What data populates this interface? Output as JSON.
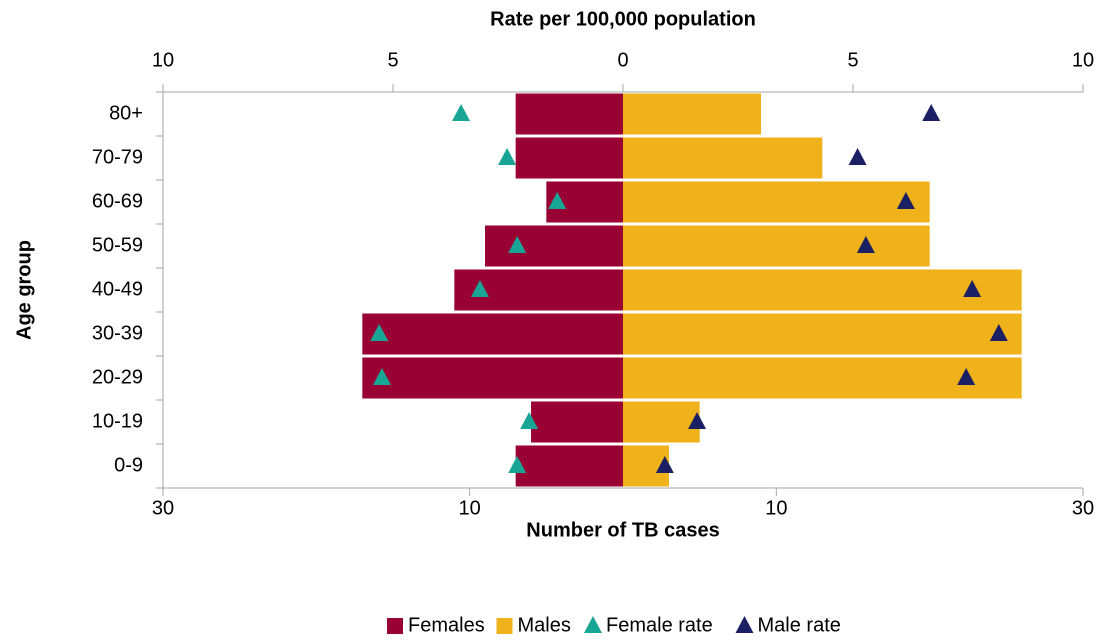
{
  "chart_data": {
    "type": "pyramid",
    "x_label": "Number of TB cases",
    "x2_label": "Rate per 100,000 population",
    "y_label": "Age group",
    "categories": [
      "0-9",
      "10-19",
      "20-29",
      "30-39",
      "40-49",
      "50-59",
      "60-69",
      "70-79",
      "80+"
    ],
    "series": [
      {
        "name": "Females",
        "kind": "bar",
        "color": "#990033",
        "values": [
          -7,
          -6,
          -17,
          -17,
          -11,
          -9,
          -5,
          -7,
          -7
        ]
      },
      {
        "name": "Males",
        "kind": "bar",
        "color": "#efb21b",
        "values": [
          3,
          5,
          26,
          26,
          26,
          20,
          20,
          13,
          9
        ]
      },
      {
        "name": "Female rate",
        "kind": "marker",
        "axis": "x2",
        "color": "#18a595",
        "values": [
          -2.3,
          -2.04,
          -5.24,
          -5.3,
          -3.11,
          -2.3,
          -1.43,
          -2.52,
          -3.52
        ]
      },
      {
        "name": "Male rate",
        "kind": "marker",
        "axis": "x2",
        "color": "#1b1f63",
        "values": [
          0.91,
          1.61,
          7.46,
          8.17,
          7.59,
          5.28,
          6.15,
          5.1,
          6.7
        ]
      }
    ],
    "xlim": [
      -30,
      30
    ],
    "xticks": [
      {
        "value": -30,
        "label": "30"
      },
      {
        "value": -10,
        "label": "10"
      },
      10,
      30
    ],
    "x2lim": [
      -10,
      10
    ],
    "x2ticks": [
      {
        "value": -10,
        "label": "10"
      },
      {
        "value": -5,
        "label": "5"
      },
      0,
      5,
      10
    ]
  }
}
